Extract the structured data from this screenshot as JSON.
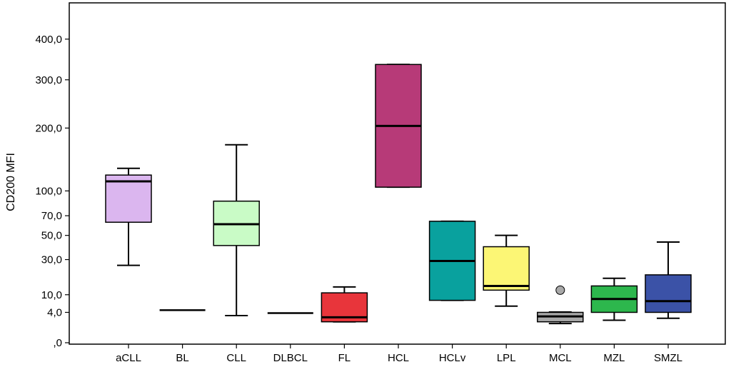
{
  "chart_data": {
    "type": "boxplot",
    "ylabel": "CD200 MFI",
    "y_scale": "sqrt",
    "ylim": [
      0,
      480
    ],
    "y_ticks": [
      0,
      4,
      10,
      30,
      50,
      70,
      100,
      200,
      300,
      400
    ],
    "y_tick_labels": [
      ",0",
      "4,0",
      "10,0",
      "30,0",
      "50,0",
      "70,0",
      "100,0",
      "200,0",
      "300,0",
      "400,0"
    ],
    "grid": false,
    "categories": [
      "aCLL",
      "BL",
      "CLL",
      "DLBCL",
      "FL",
      "HCL",
      "HCLv",
      "LPL",
      "MCL",
      "MZL",
      "SMZL"
    ],
    "boxes": [
      {
        "category": "aCLL",
        "min": 26,
        "q1": 63,
        "median": 113,
        "q3": 122,
        "max": 132,
        "color": "#dbb6ef"
      },
      {
        "category": "BL",
        "min": 4.6,
        "q1": 4.6,
        "median": 4.6,
        "q3": 4.6,
        "max": 4.6,
        "color": "#000000"
      },
      {
        "category": "CLL",
        "min": 3.2,
        "q1": 41,
        "median": 61,
        "q3": 87,
        "max": 170,
        "color": "#c9fbc6"
      },
      {
        "category": "DLBCL",
        "min": 3.8,
        "q1": 3.8,
        "median": 3.8,
        "q3": 3.8,
        "max": 3.8,
        "color": "#000000"
      },
      {
        "category": "FL",
        "min": 1.9,
        "q1": 1.9,
        "median": 2.8,
        "q3": 10.8,
        "max": 13.5,
        "color": "#e8353b"
      },
      {
        "category": "HCL",
        "min": 105,
        "q1": 105,
        "median": 204,
        "q3": 336,
        "max": 336,
        "color": "#b73a78"
      },
      {
        "category": "HCLv",
        "min": 7.8,
        "q1": 7.8,
        "median": 29,
        "q3": 64,
        "max": 64,
        "color": "#09a19e"
      },
      {
        "category": "LPL",
        "min": 5.8,
        "q1": 12,
        "median": 14,
        "q3": 40,
        "max": 50,
        "color": "#fcf675"
      },
      {
        "category": "MCL",
        "min": 1.6,
        "q1": 1.9,
        "median": 3.0,
        "q3": 4.0,
        "max": 4.1,
        "color": "#a9a9a9",
        "outliers": [
          12
        ]
      },
      {
        "category": "MZL",
        "min": 2.2,
        "q1": 4.0,
        "median": 8.3,
        "q3": 14,
        "max": 18,
        "color": "#2db74d"
      },
      {
        "category": "SMZL",
        "min": 2.6,
        "q1": 4.0,
        "median": 7.5,
        "q3": 20,
        "max": 44,
        "color": "#3b52a7"
      }
    ]
  }
}
